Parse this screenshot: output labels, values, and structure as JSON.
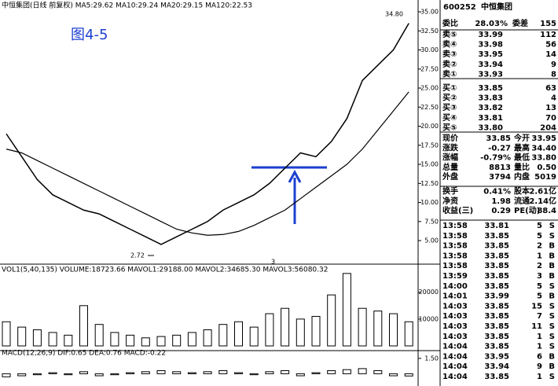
{
  "figure_label": "图4-5",
  "chart_data": [
    {
      "type": "line",
      "title": "中恒集团(日线 前复权) MA5:29.62 MA10:29.24 MA20:29.15 MA120:22.53",
      "categories": [
        null,
        null,
        null,
        null,
        null,
        null,
        null,
        null,
        null,
        null,
        null,
        null,
        null,
        null,
        null,
        null,
        null,
        null,
        null,
        null,
        null,
        null,
        null,
        null,
        null,
        null,
        null
      ],
      "series": [
        {
          "color": "#000000",
          "values": [
            19,
            16,
            13,
            11,
            10,
            9,
            8.5,
            7.5,
            6.5,
            5.5,
            4.5,
            5.5,
            6.5,
            7.5,
            9,
            10,
            11,
            12.5,
            14.5,
            16.5,
            16,
            18,
            21,
            26,
            28,
            30,
            33.5
          ]
        },
        {
          "color": "#000000",
          "values": [
            17,
            16.5,
            15.5,
            14.5,
            13.5,
            12.5,
            11.5,
            10.5,
            9.5,
            8.5,
            7.5,
            6.5,
            6,
            5.7,
            5.8,
            6.2,
            7,
            8,
            9,
            10.5,
            12,
            13.5,
            15,
            17,
            19.5,
            22,
            24.5
          ]
        }
      ],
      "ylim": [
        2.53,
        36.55
      ],
      "yticks": [
        {
          "value": 35,
          "label": "35.00"
        },
        {
          "value": 32.5,
          "label": "32.50"
        },
        {
          "value": 30,
          "label": "30.00"
        },
        {
          "value": 27.5,
          "label": "27.50"
        },
        {
          "value": 25,
          "label": "25.00"
        },
        {
          "value": 22.5,
          "label": "22.50"
        },
        {
          "value": 20,
          "label": "20.00"
        },
        {
          "value": 17.5,
          "label": "17.50"
        },
        {
          "value": 15,
          "label": "15.00"
        },
        {
          "value": 12.5,
          "label": "12.50"
        },
        {
          "value": 10,
          "label": "10.00"
        },
        {
          "value": 7.5,
          "label": "7.50"
        },
        {
          "value": 5,
          "label": "5.00"
        }
      ],
      "annotations": [
        "34.80",
        "2.72",
        "3"
      ]
    },
    {
      "type": "bar",
      "title": "VOL1(5,40,135) VOLUME:18723.66 MAVOL1:29188.00 MAVOL2:34685.30 MAVOL3:56080.32",
      "categories": [
        null,
        null,
        null,
        null,
        null,
        null,
        null,
        null,
        null,
        null,
        null,
        null,
        null,
        null,
        null,
        null,
        null,
        null,
        null,
        null,
        null,
        null,
        null,
        null,
        null,
        null,
        null
      ],
      "values": [
        9000,
        7000,
        6000,
        5000,
        4000,
        15000,
        8000,
        5000,
        4000,
        3000,
        3500,
        4000,
        5000,
        6000,
        8000,
        9000,
        7000,
        12000,
        14000,
        10000,
        11000,
        19000,
        27000,
        14000,
        13000,
        12000,
        9000
      ],
      "color": "#000000",
      "ylim": [
        0,
        29000
      ],
      "yticks": [
        10000,
        20000
      ]
    },
    {
      "type": "bar",
      "title": "MACD(12,26,9) DIF:0.65 DEA:0.76 MACD:-0.22",
      "categories": [
        null,
        null,
        null,
        null,
        null,
        null,
        null,
        null,
        null,
        null,
        null,
        null,
        null,
        null,
        null,
        null,
        null,
        null,
        null,
        null,
        null,
        null,
        null,
        null,
        null,
        null,
        null
      ],
      "values": [
        -0.3,
        -0.2,
        -0.1,
        0.1,
        -0.1,
        0.2,
        -0.2,
        -0.1,
        0.1,
        0.2,
        0.3,
        0.2,
        0.1,
        0.2,
        0.3,
        0.1,
        -0.1,
        0.2,
        0.3,
        -0.2,
        0.1,
        0.3,
        0.4,
        0.5,
        0.3,
        -0.2,
        -0.22
      ],
      "color": "#000000",
      "ylim": [
        -1.2,
        1.8
      ],
      "yticks": [
        {
          "value": 1.5,
          "label": "1.50"
        }
      ]
    }
  ],
  "quote": {
    "code": "600252",
    "name": "中恒集团",
    "weibi": [
      "委比",
      "28.03%",
      "委差",
      "155"
    ],
    "book": [
      [
        "卖⑤",
        "33.99",
        "112"
      ],
      [
        "卖④",
        "33.98",
        "56"
      ],
      [
        "卖③",
        "33.95",
        "14"
      ],
      [
        "卖②",
        "33.94",
        "9"
      ],
      [
        "卖①",
        "33.93",
        "8"
      ],
      [
        "买①",
        "33.85",
        "63"
      ],
      [
        "买②",
        "33.83",
        "4"
      ],
      [
        "买③",
        "33.82",
        "13"
      ],
      [
        "买④",
        "33.81",
        "70"
      ],
      [
        "买⑤",
        "33.80",
        "204"
      ]
    ],
    "stats": [
      [
        "现价",
        "33.85",
        "今开",
        "33.95"
      ],
      [
        "涨跌",
        "-0.27",
        "最高",
        "34.40"
      ],
      [
        "涨幅",
        "-0.79%",
        "最低",
        "33.80"
      ],
      [
        "总量",
        "8813",
        "量比",
        "0.50"
      ],
      [
        "外盘",
        "3794",
        "内盘",
        "5019"
      ],
      [
        "换手",
        "0.41%",
        "股本",
        "2.61亿"
      ],
      [
        "净资",
        "1.98",
        "流通",
        "2.14亿"
      ],
      [
        "收益(三)",
        "0.29",
        "PE(动)",
        "88.4"
      ]
    ],
    "ticks": [
      [
        "13:58",
        "33.81",
        "5",
        "S"
      ],
      [
        "13:58",
        "33.85",
        "5",
        "S"
      ],
      [
        "13:58",
        "33.85",
        "2",
        "B"
      ],
      [
        "13:58",
        "33.85",
        "1",
        "B"
      ],
      [
        "13:58",
        "33.85",
        "2",
        "B"
      ],
      [
        "13:59",
        "33.85",
        "3",
        "B"
      ],
      [
        "14:00",
        "33.85",
        "5",
        "S"
      ],
      [
        "14:01",
        "33.99",
        "5",
        "B"
      ],
      [
        "14:03",
        "33.85",
        "15",
        "S"
      ],
      [
        "14:03",
        "33.85",
        "7",
        "S"
      ],
      [
        "14:03",
        "33.85",
        "11",
        "S"
      ],
      [
        "14:03",
        "33.85",
        "1",
        "S"
      ],
      [
        "14:04",
        "33.85",
        "1",
        "S"
      ],
      [
        "14:04",
        "33.95",
        "6",
        "B"
      ],
      [
        "14:04",
        "33.94",
        "9",
        "B"
      ],
      [
        "14:04",
        "33.85",
        "1",
        "S"
      ]
    ]
  }
}
